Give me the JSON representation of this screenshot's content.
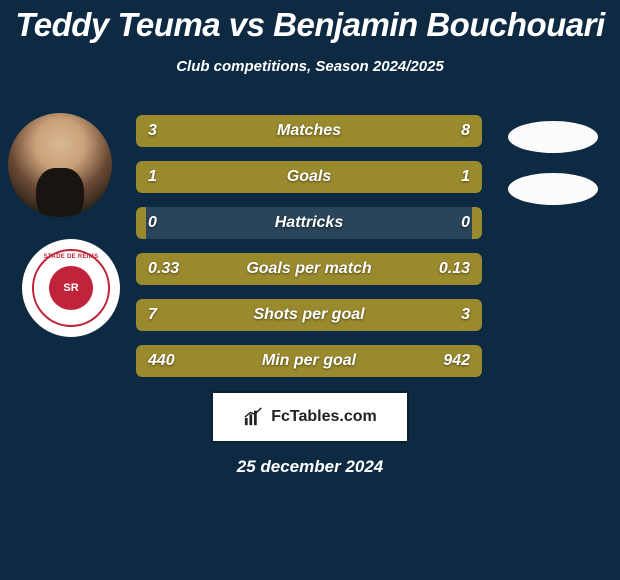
{
  "title": "Teddy Teuma vs Benjamin Bouchouari",
  "subtitle": "Club competitions, Season 2024/2025",
  "date": "25 december 2024",
  "footer_brand": "FcTables.com",
  "club_badge": {
    "text": "SR",
    "tag": "STADE DE REIMS"
  },
  "colors": {
    "background": "#0d2a42",
    "bar_bg": "#2a4459",
    "bar_fill": "#9a8a2e",
    "text": "#ffffff"
  },
  "chart": {
    "type": "comparison-bars",
    "rows": [
      {
        "label": "Matches",
        "left": "3",
        "right": "8",
        "left_pct": 27,
        "right_pct": 73
      },
      {
        "label": "Goals",
        "left": "1",
        "right": "1",
        "left_pct": 50,
        "right_pct": 50
      },
      {
        "label": "Hattricks",
        "left": "0",
        "right": "0",
        "left_pct": 3,
        "right_pct": 3
      },
      {
        "label": "Goals per match",
        "left": "0.33",
        "right": "0.13",
        "left_pct": 72,
        "right_pct": 28
      },
      {
        "label": "Shots per goal",
        "left": "7",
        "right": "3",
        "left_pct": 70,
        "right_pct": 30
      },
      {
        "label": "Min per goal",
        "left": "440",
        "right": "942",
        "left_pct": 32,
        "right_pct": 68
      }
    ]
  }
}
